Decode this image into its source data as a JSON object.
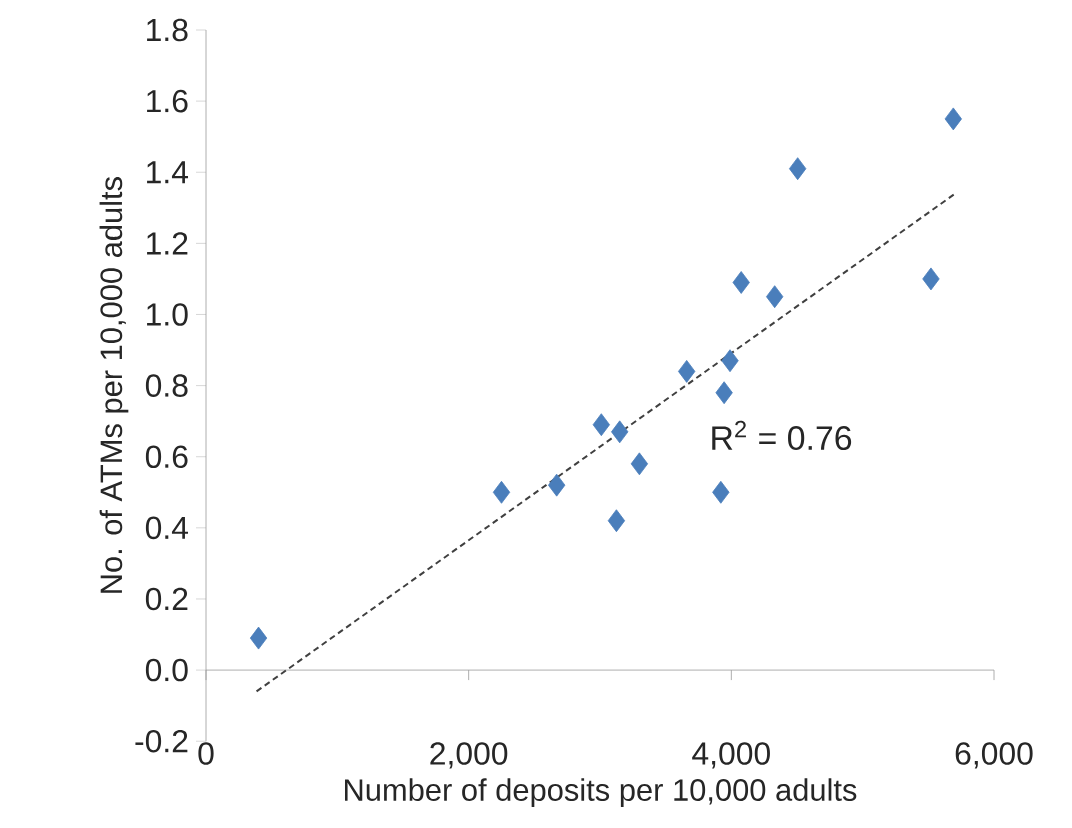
{
  "chart_data": {
    "type": "scatter",
    "xlabel": "Number of deposits per 10,000 adults",
    "ylabel": "No. of ATMs per 10,000 adults",
    "xlim": [
      0,
      6000
    ],
    "ylim": [
      -0.2,
      1.8
    ],
    "xticks": [
      0,
      {
        "value": 2000,
        "label": "2,000"
      },
      {
        "value": 4000,
        "label": "4,000"
      },
      {
        "value": 6000,
        "label": "6,000"
      }
    ],
    "yticks": [
      -0.2,
      {
        "value": 0,
        "label": "0.0"
      },
      0.2,
      0.4,
      0.6,
      0.8,
      {
        "value": 1,
        "label": "1.0"
      },
      1.2,
      1.4,
      1.6,
      1.8
    ],
    "marker": "diamond",
    "annotations": [
      "R$^{2}$ = 0.76"
    ],
    "series": [
      {
        "color": "#4a7ebb",
        "x": [
          400,
          2250,
          2670,
          3010,
          3150,
          3300,
          3125,
          3920,
          3660,
          3990,
          3945,
          4075,
          4330,
          4505,
          5520,
          5690
        ],
        "values": [
          0.09,
          0.5,
          0.52,
          0.69,
          0.67,
          0.58,
          0.42,
          0.5,
          0.84,
          0.87,
          0.78,
          1.09,
          1.05,
          1.41,
          1.1,
          1.55
        ]
      },
      {
        "type": "line",
        "color": "#404040",
        "line_style": "dashed",
        "marker": "none",
        "x": [
          385,
          5705
        ],
        "values": [
          -0.06,
          1.34
        ]
      }
    ]
  }
}
